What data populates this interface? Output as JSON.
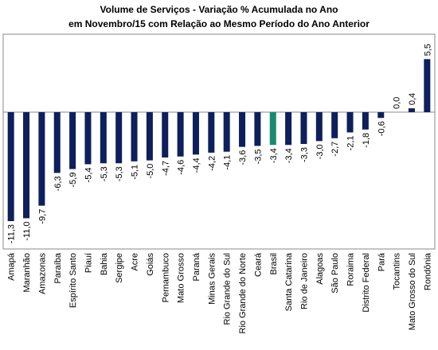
{
  "chart_data": {
    "type": "bar",
    "title": [
      "Volume de Serviços - Variação % Acumulada no Ano",
      "em Novembro/15 com Relação ao Mesmo Período do Ano Anterior"
    ],
    "categories": [
      "Amapá",
      "Maranhão",
      "Amazonas",
      "Paraíba",
      "Espírito Santo",
      "Piauí",
      "Bahia",
      "Sergipe",
      "Acre",
      "Goiás",
      "Pernambuco",
      "Mato Grosso",
      "Paraná",
      "Minas Gerais",
      "Rio Grande do Sul",
      "Rio Grande do Norte",
      "Ceará",
      "Brasil",
      "Santa Catarina",
      "Rio de Janeiro",
      "Alagoas",
      "São Paulo",
      "Roraima",
      "Distrito Federal",
      "Pará",
      "Tocantins",
      "Mato Grosso do Sul",
      "Rondônia"
    ],
    "values": [
      -11.3,
      -11.0,
      -9.7,
      -6.3,
      -5.9,
      -5.4,
      -5.3,
      -5.3,
      -5.1,
      -5.0,
      -4.7,
      -4.6,
      -4.4,
      -4.2,
      -4.1,
      -3.6,
      -3.5,
      -3.4,
      -3.4,
      -3.3,
      -3.0,
      -2.7,
      -2.1,
      -1.8,
      -0.6,
      0.0,
      0.4,
      5.5
    ],
    "value_labels": [
      "-11,3",
      "-11,0",
      "-9,7",
      "-6,3",
      "-5,9",
      "-5,4",
      "-5,3",
      "-5,3",
      "-5,1",
      "-5,0",
      "-4,7",
      "-4,6",
      "-4,4",
      "-4,2",
      "-4,1",
      "-3,6",
      "-3,5",
      "-3,4",
      "-3,4",
      "-3,3",
      "-3,0",
      "-2,7",
      "-2,1",
      "-1,8",
      "-0,6",
      "0,0",
      "0,4",
      "5,5"
    ],
    "colors": [
      "#0d1f5c",
      "#0d1f5c",
      "#0d1f5c",
      "#0d1f5c",
      "#0d1f5c",
      "#0d1f5c",
      "#0d1f5c",
      "#0d1f5c",
      "#0d1f5c",
      "#0d1f5c",
      "#0d1f5c",
      "#0d1f5c",
      "#0d1f5c",
      "#0d1f5c",
      "#0d1f5c",
      "#0d1f5c",
      "#0d1f5c",
      "#1a8a6e",
      "#0d1f5c",
      "#0d1f5c",
      "#0d1f5c",
      "#0d1f5c",
      "#0d1f5c",
      "#0d1f5c",
      "#0d1f5c",
      "#0d1f5c",
      "#0d1f5c",
      "#0d1f5c"
    ]
  }
}
